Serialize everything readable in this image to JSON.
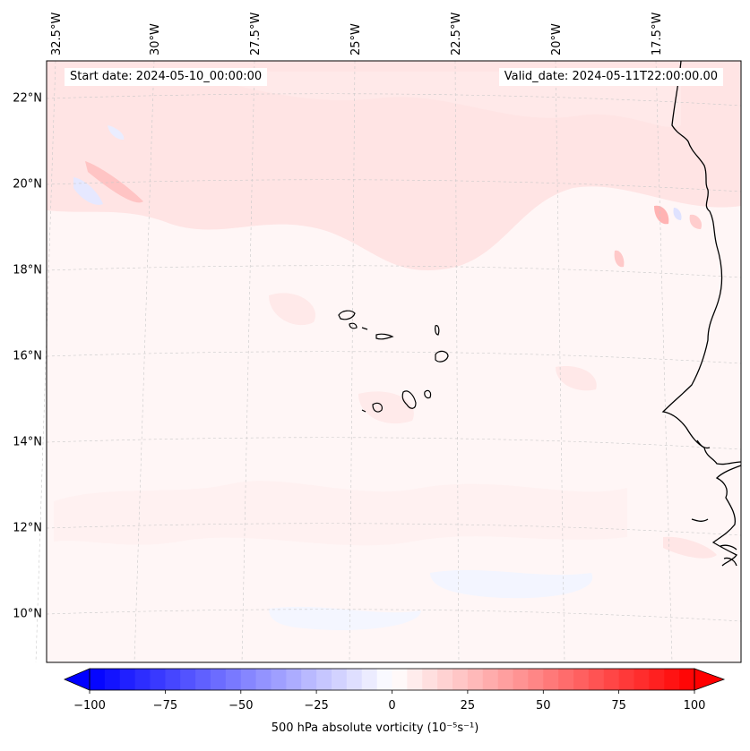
{
  "header": {
    "start_date": "Start date: 2024-05-10_00:00:00",
    "valid_date": "Valid_date: 2024-05-11T22:00:00.00"
  },
  "map": {
    "lon_labels": [
      "32.5°W",
      "30°W",
      "27.5°W",
      "25°W",
      "22.5°W",
      "20°W",
      "17.5°W"
    ],
    "lat_labels": [
      "22°N",
      "20°N",
      "18°N",
      "16°N",
      "14°N",
      "12°N",
      "10°N"
    ]
  },
  "colorbar": {
    "label": "500 hPa absolute vorticity (10⁻⁵s⁻¹)",
    "ticks": [
      "−100",
      "−75",
      "−50",
      "−25",
      "0",
      "25",
      "50",
      "75",
      "100"
    ],
    "vmin": -100,
    "vmax": 100,
    "cmap": [
      "#0000ff",
      "#ffffff",
      "#ff0000"
    ]
  }
}
